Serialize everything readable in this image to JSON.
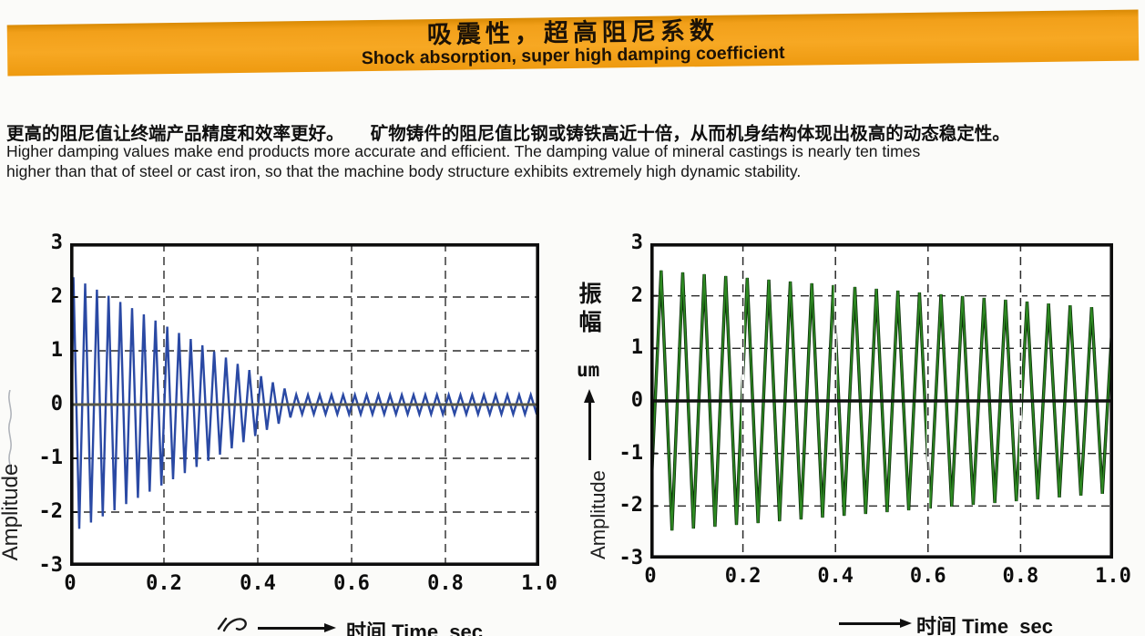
{
  "banner": {
    "title_zh": "吸震性，超高阻尼系数",
    "title_en": "Shock absorption, super high damping coefficient",
    "bg_color": "#F5A01E",
    "text_color": "#1C1206"
  },
  "intro": {
    "zh": "更高的阻尼值让终端产品精度和效率更好。　　矿物铸件的阻尼值比钢或铸铁高近十倍，从而机身结构体现出极高的动态稳定性。",
    "en_line1": "Higher damping values make end products more accurate and efficient. The damping value of mineral castings is nearly ten times",
    "en_line2": "higher than that of steel or cast iron, so that the machine body structure exhibits extremely high dynamic stability."
  },
  "chart_data": [
    {
      "id": "left",
      "type": "line",
      "description": "Rapidly decaying vibration (mineral casting, high damping)",
      "xlim": [
        0,
        1.0
      ],
      "ylim": [
        -3,
        3
      ],
      "xticks": [
        "0",
        "0.2",
        "0.4",
        "0.6",
        "0.8",
        "1.0"
      ],
      "yticks": [
        "3",
        "2",
        "1",
        "0",
        "-1",
        "-2",
        "-3"
      ],
      "xlabel": "时间 Time  sec",
      "ylabel": "Amplitude",
      "grid": "dashed",
      "legend": "none",
      "zero_line_color": "#585848",
      "zero_line_width": 3,
      "vgrid_overlay": false,
      "wave": {
        "form": "triangle",
        "frequency_hz": 40,
        "envelope": "linear-to-floor",
        "amp_start": 2.4,
        "amp_slope_per_sec": -4.6,
        "amp_floor": 0.18,
        "start_value": -2.3,
        "first_peak_t": 0.007,
        "color": "#2A49A4"
      }
    },
    {
      "id": "right",
      "type": "line",
      "description": "Sustained vibration, very slow decay (steel / cast iron, low damping)",
      "xlim": [
        0,
        1.0
      ],
      "ylim": [
        -3,
        3
      ],
      "xticks": [
        "0",
        "0.2",
        "0.4",
        "0.6",
        "0.8",
        "1.0"
      ],
      "yticks": [
        "3",
        "2",
        "1",
        "0",
        "-1",
        "-2",
        "-3"
      ],
      "xlabel": "时间 Time  sec",
      "ylabel_zh": "振幅",
      "ylabel_unit": "um",
      "ylabel": "Amplitude",
      "grid": "dashed",
      "legend": "none",
      "zero_line_color": "#101010",
      "zero_line_width": 3.6,
      "vgrid_overlay": true,
      "wave": {
        "form": "triangle",
        "frequency_hz": 21.5,
        "envelope": "linear",
        "amp_start": 2.5,
        "amp_slope_per_sec": -0.75,
        "amp_floor": 0,
        "start_value": -2.0,
        "first_peak_t": 0.0233,
        "outline_color": "#0B2F09",
        "color": "#2E8B22"
      }
    }
  ]
}
